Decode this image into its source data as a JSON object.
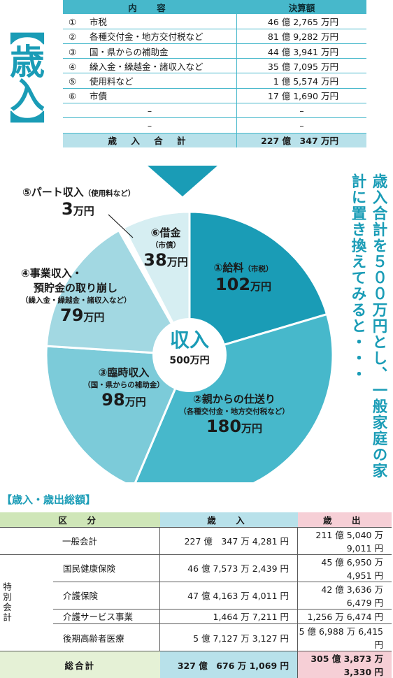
{
  "heading": "【歳入】",
  "revenue_table": {
    "col_item": "内　容",
    "col_amount": "決算額",
    "rows": [
      {
        "num": "①",
        "name": "市税",
        "amount": "46 億 2,765 万円"
      },
      {
        "num": "②",
        "name": "各種交付金・地方交付税など",
        "amount": "81 億 9,282 万円"
      },
      {
        "num": "③",
        "name": "国・県からの補助金",
        "amount": "44 億 3,941 万円"
      },
      {
        "num": "④",
        "name": "繰入金・繰越金・諸収入など",
        "amount": "35 億 7,095 万円"
      },
      {
        "num": "⑤",
        "name": "使用料など",
        "amount": "1 億 5,574 万円"
      },
      {
        "num": "⑥",
        "name": "市債",
        "amount": "17 億 1,690 万円"
      },
      {
        "num": "",
        "name": "–",
        "amount": "–"
      },
      {
        "num": "",
        "name": "–",
        "amount": "–"
      }
    ],
    "total_label": "歳 入 合 計",
    "total_amount": "227 億　347 万円"
  },
  "pie": {
    "center_title": "収入",
    "center_value": "500万円",
    "unit": "万円",
    "labels": {
      "salary": {
        "title": "①給料",
        "sub": "（市税）",
        "value": "102"
      },
      "allowance": {
        "title": "②親からの仕送り",
        "sub": "（各種交付金・地方交付税など）",
        "value": "180"
      },
      "temporary": {
        "title": "③臨時収入",
        "sub": "（国・県からの補助金）",
        "value": "98"
      },
      "business": {
        "title1": "④事業収入・",
        "title2": "預貯金の取り崩し",
        "sub": "（繰入金・繰越金・諸収入など）",
        "value": "79"
      },
      "parttime": {
        "title": "⑤パート収入",
        "sub": "（使用料など）",
        "value": "3"
      },
      "loan": {
        "title": "⑥借金",
        "sub": "（市債）",
        "value": "38"
      }
    }
  },
  "chart_data": {
    "type": "pie",
    "title": "収入 500万円",
    "categories": [
      "①給料",
      "②親からの仕送り",
      "③臨時収入",
      "④事業収入・預貯金の取り崩し",
      "⑤パート収入",
      "⑥借金"
    ],
    "values": [
      102,
      180,
      98,
      79,
      3,
      38
    ],
    "unit": "万円",
    "colors": [
      "#1a9cb6",
      "#47b8cb",
      "#7ccbd9",
      "#a2d8e2",
      "#ffffff",
      "#d6eef2"
    ]
  },
  "vertical_message": "歳入合計を５００万円とし、一般家庭の家計に置き換えてみると・・・",
  "summary": {
    "heading": "【歳入・歳出総額】",
    "headers": {
      "category": "区　分",
      "revenue": "歳　入",
      "expenditure": "歳　出"
    },
    "side_label": "特別会計",
    "general": {
      "name": "一般会計",
      "revenue": "227 億　347 万 4,281 円",
      "expenditure": "211 億 5,040 万 9,011 円"
    },
    "special": [
      {
        "name": "国民健康保険",
        "revenue": "46 億 7,573 万 2,439 円",
        "expenditure": "45 億 6,950 万 4,951 円"
      },
      {
        "name": "介護保険",
        "revenue": "47 億 4,163 万 4,011 円",
        "expenditure": "42 億 3,636 万 6,479 円"
      },
      {
        "name": "介護サービス事業",
        "revenue": "1,464 万 7,211 円",
        "expenditure": "1,256 万 6,474 円"
      },
      {
        "name": "後期高齢者医療",
        "revenue": "5 億 7,127 万 3,127 円",
        "expenditure": "5 億 6,988 万 6,415 円"
      }
    ],
    "total": {
      "name": "総合計",
      "revenue": "327 億　676 万 1,069 円",
      "expenditure": "305 億 3,873 万 3,330 円"
    }
  }
}
